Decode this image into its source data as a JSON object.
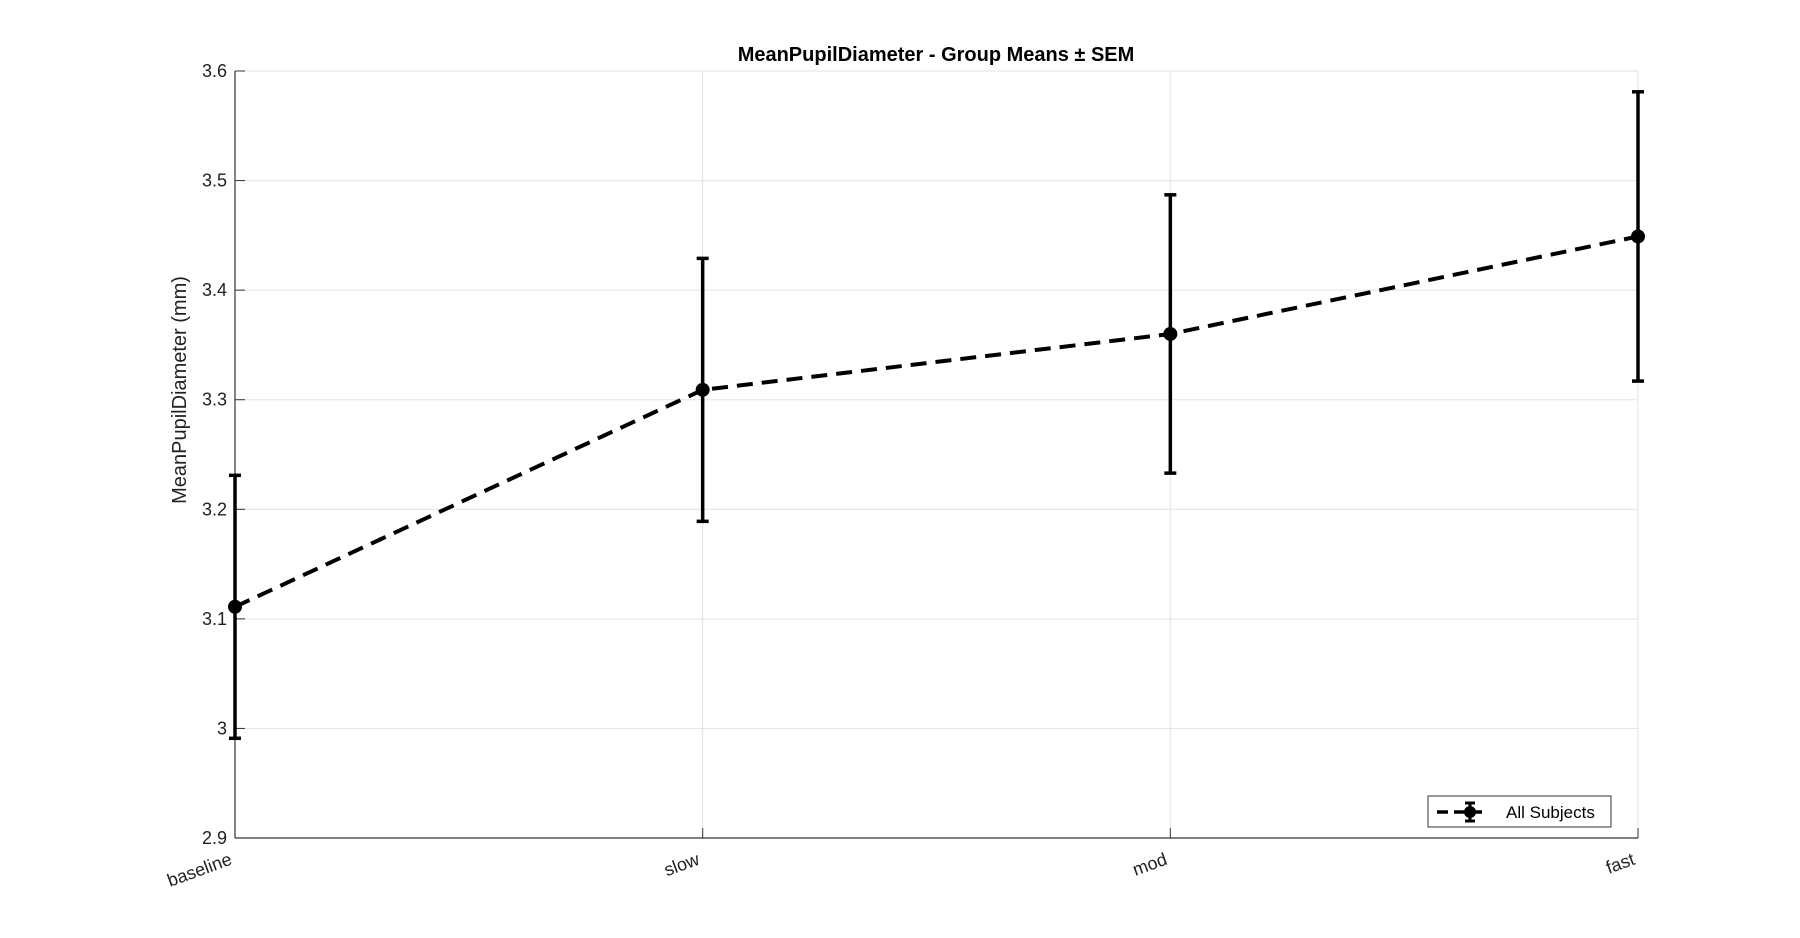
{
  "chart_data": {
    "type": "line",
    "title": "MeanPupilDiameter - Group Means ± SEM",
    "xlabel": "",
    "ylabel": "MeanPupilDiameter (mm)",
    "categories": [
      "baseline",
      "slow",
      "mod",
      "fast"
    ],
    "ylim": [
      2.9,
      3.6
    ],
    "yticks": [
      "2.9",
      "3",
      "3.1",
      "3.2",
      "3.3",
      "3.4",
      "3.5",
      "3.6"
    ],
    "grid": true,
    "legend_position": "bottom-right",
    "series": [
      {
        "name": "All Subjects",
        "values": [
          3.111,
          3.309,
          3.36,
          3.449
        ],
        "sem": [
          0.12,
          0.12,
          0.127,
          0.132
        ],
        "color": "#000000",
        "line_style": "dashed",
        "marker": "circle"
      }
    ]
  }
}
